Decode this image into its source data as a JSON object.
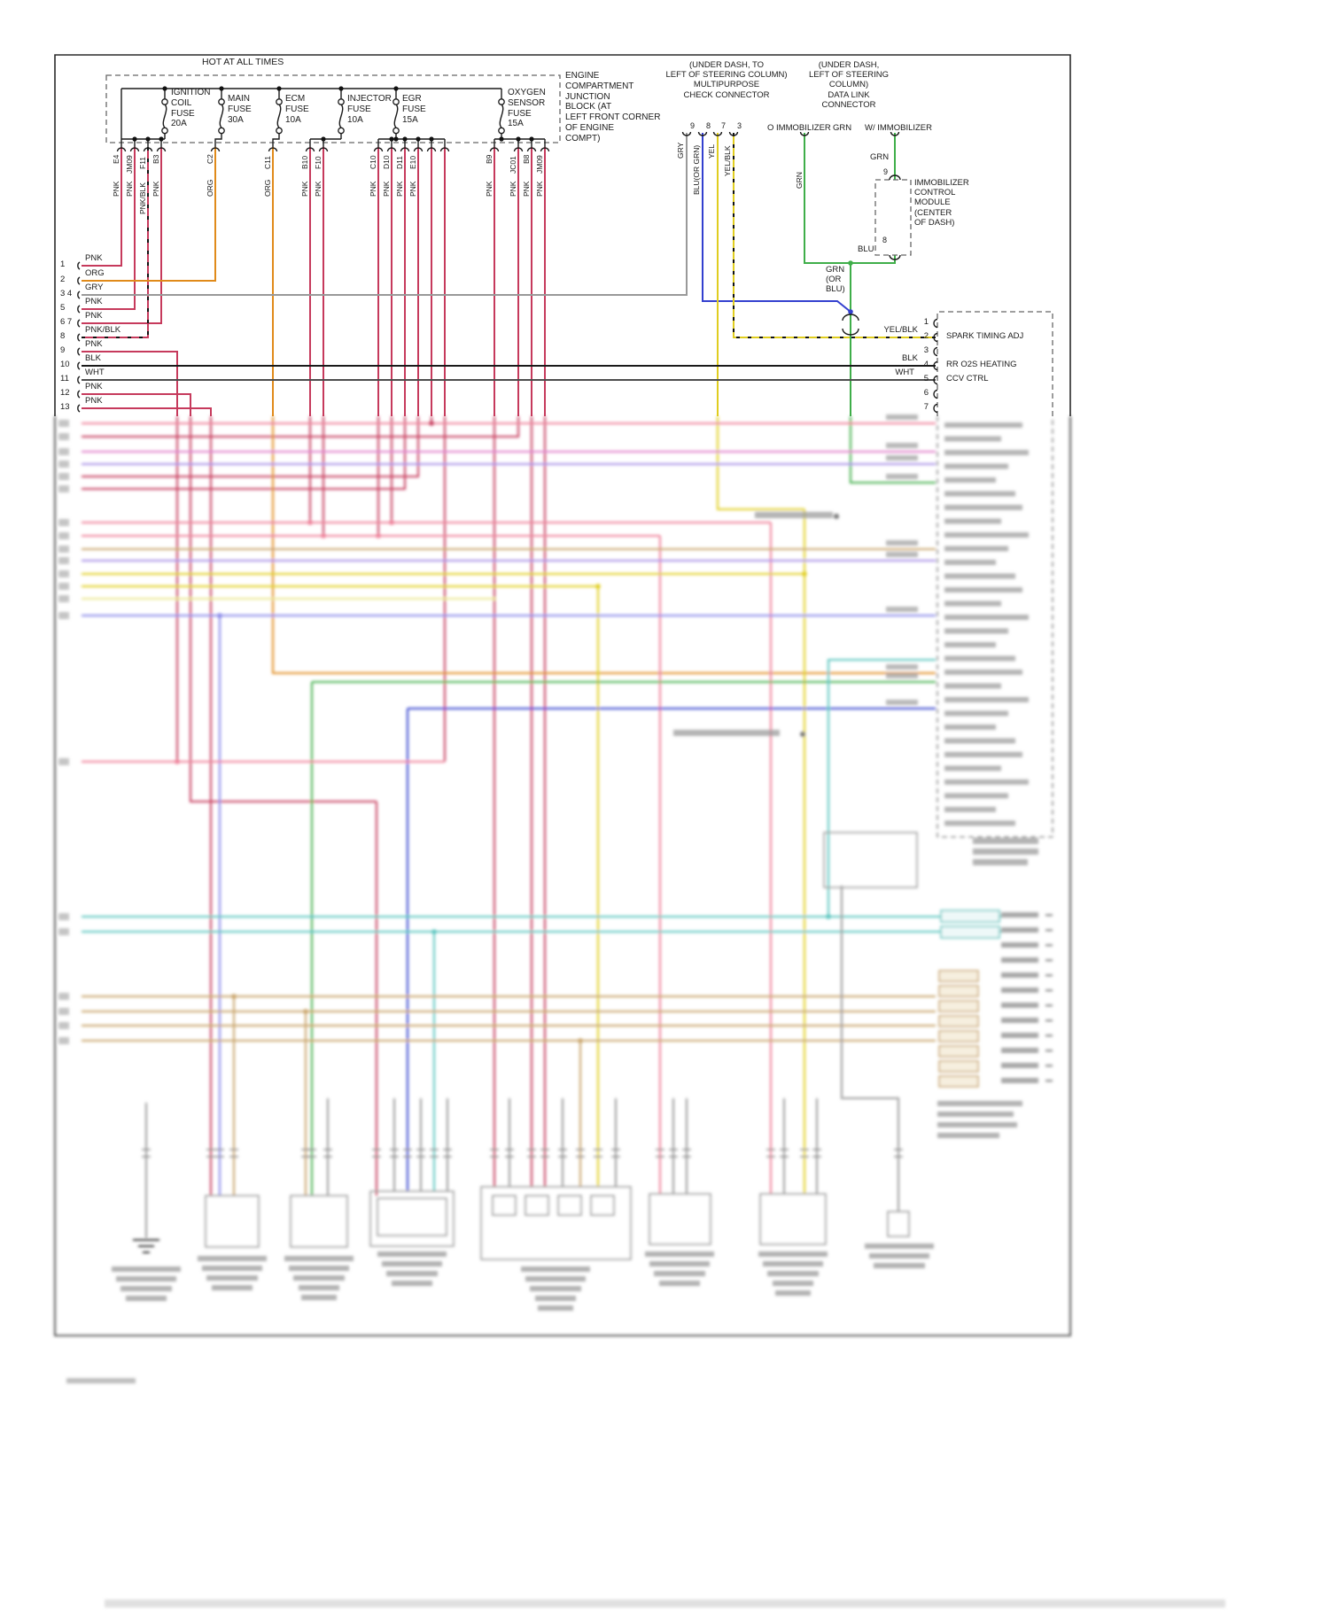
{
  "palette": {
    "pnk": "#c63a5c",
    "org": "#e08a1a",
    "gry": "#999999",
    "grn": "#3fae49",
    "blu": "#3340cf",
    "yel": "#e0cd1f",
    "blk": "#1a1a1a",
    "wht": "#4d4d4d",
    "red_lt": "#ee7d96",
    "yel_lt": "#ebe78d",
    "blu_lt": "#8787e8",
    "magenta": "#df7cc8",
    "violet": "#a48be6",
    "cyan": "#58c4be",
    "tan": "#c8a368",
    "gray": "#9a9a9a",
    "frame": "#2a2a2a",
    "dash_box": "#777777"
  },
  "top": {
    "hot_label": "HOT AT ALL TIMES",
    "junction_note": "ENGINE COMPARTMENT\nJUNCTION\nBLOCK (AT\nLEFT FRONT CORNER\nOF ENGINE\nCOMPT)",
    "fuses": [
      "IGNITION\nCOIL\nFUSE\n20A",
      "MAIN\nFUSE\n30A",
      "ECM\nFUSE\n10A",
      "INJECTOR\nFUSE\n10A",
      "EGR\nFUSE\n15A",
      "OXYGEN\nSENSOR\nFUSE\n15A"
    ],
    "connectors": [
      {
        "pin": "E4",
        "color": "PNK"
      },
      {
        "pin": "JM09",
        "color": "PNK"
      },
      {
        "pin": "F11",
        "color": "PNK/BLK"
      },
      {
        "pin": "B3",
        "color": "PNK"
      },
      {
        "pin": "C2",
        "color": "ORG"
      },
      {
        "pin": "C11",
        "color": "ORG"
      },
      {
        "pin": "B10",
        "color": "PNK"
      },
      {
        "pin": "F10",
        "color": "PNK"
      },
      {
        "pin": "C10",
        "color": "PNK"
      },
      {
        "pin": "D10",
        "color": "PNK"
      },
      {
        "pin": "D11",
        "color": "PNK"
      },
      {
        "pin": "E10",
        "color": "PNK"
      },
      {
        "pin": "B9",
        "color": "PNK"
      },
      {
        "pin": "JC01",
        "color": "PNK"
      },
      {
        "pin": "B8",
        "color": "PNK"
      },
      {
        "pin": "JM09",
        "color": "PNK"
      }
    ]
  },
  "left_connector": {
    "rows": [
      {
        "num": "1",
        "color": "PNK"
      },
      {
        "num": "2",
        "color": "ORG"
      },
      {
        "num": "3 4",
        "color": "GRY"
      },
      {
        "num": "5",
        "color": "PNK"
      },
      {
        "num": "6 7",
        "color": "PNK"
      },
      {
        "num": "8",
        "color": "PNK/BLK"
      },
      {
        "num": "9",
        "color": "PNK"
      },
      {
        "num": "10",
        "color": "BLK"
      },
      {
        "num": "11",
        "color": "WHT"
      },
      {
        "num": "12",
        "color": "PNK"
      },
      {
        "num": "13",
        "color": "PNK"
      }
    ]
  },
  "multipurpose": {
    "title": "(UNDER DASH, TO\nLEFT OF STEERING COLUMN)\nMULTIPURPOSE\nCHECK CONNECTOR",
    "pins": [
      {
        "num": "9",
        "color": "GRY"
      },
      {
        "num": "8",
        "color": "BLU(OR GRN)"
      },
      {
        "num": "7",
        "color": "YEL"
      },
      {
        "num": "3",
        "color": "YEL/BLK"
      }
    ]
  },
  "datalink": {
    "title": "(UNDER DASH,\nLEFT OF STEERING\nCOLUMN)\nDATA LINK\nCONNECTOR",
    "wo_label": "O IMMOBILIZER",
    "grn_label": "GRN",
    "w_label": "W/ IMMOBILIZER",
    "grn_right": "GRN",
    "grn_wire": "GRN"
  },
  "immobilizer": {
    "box_label": "IMMOBILIZER\nCONTROL\nMODULE\n(CENTER\nOF DASH)",
    "pin_top": "9",
    "pin_bottom": "8",
    "blu_label": "BLU",
    "grn_or_blu": "GRN\n(OR\nBLU)"
  },
  "ecm": {
    "pins": [
      {
        "num": "1",
        "label": ""
      },
      {
        "num": "2",
        "label": "SPARK TIMING ADJ"
      },
      {
        "num": "3",
        "label": ""
      },
      {
        "num": "4",
        "label": "RR O2S HEATING"
      },
      {
        "num": "5",
        "label": "CCV CTRL"
      },
      {
        "num": "6",
        "label": ""
      },
      {
        "num": "7",
        "label": ""
      }
    ],
    "yelblk_label": "YEL/BLK",
    "blk_label": "BLK",
    "wht_label": "WHT"
  }
}
